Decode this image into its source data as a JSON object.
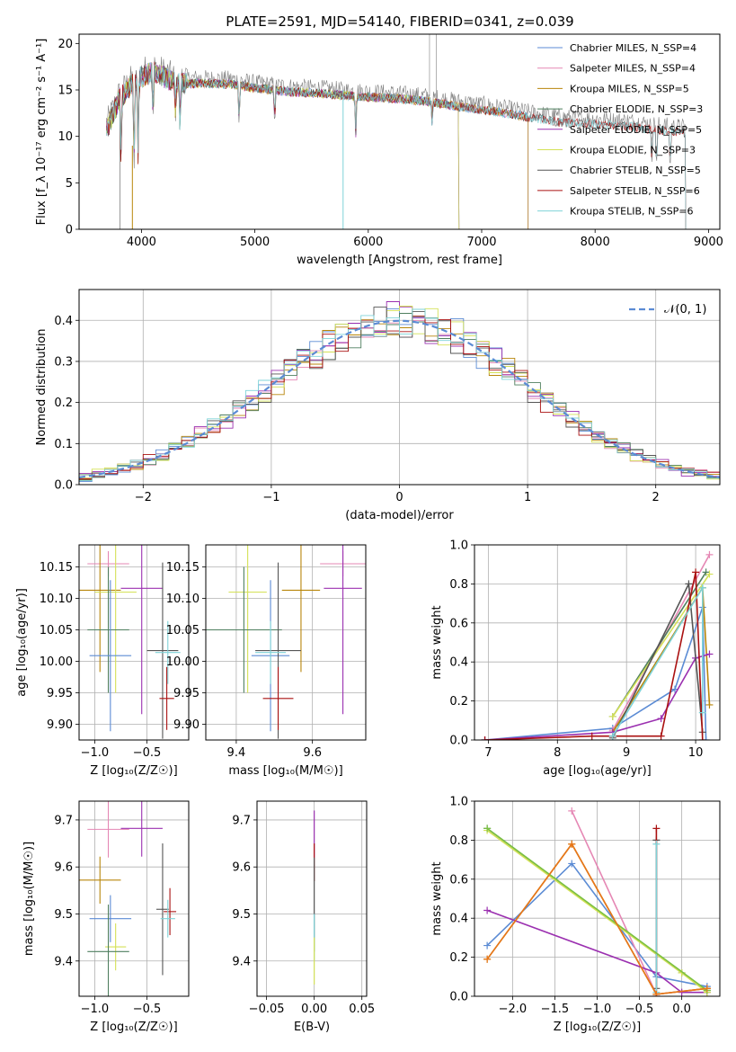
{
  "title": "PLATE=2591, MJD=54140, FIBERID=0341, z=0.039",
  "colors": {
    "Chabrier MILES": "#5b8bd4",
    "Salpeter MILES": "#e587b4",
    "Kroupa MILES": "#b8860b",
    "Chabrier ELODIE": "#4f7f5f",
    "Salpeter ELODIE": "#9b30b0",
    "Kroupa ELODIE": "#d4e157",
    "Chabrier STELIB": "#555555",
    "Salpeter STELIB": "#aa1111",
    "Kroupa STELIB": "#7fd3d8",
    "data": "#808080",
    "orange": "#e8761a",
    "green": "#7bc043"
  },
  "chart_data": [
    {
      "id": "spectrum",
      "type": "line",
      "xlabel": "wavelength [Angstrom, rest frame]",
      "ylabel": "Flux [f_λ 10⁻¹⁷ erg cm⁻² s⁻¹ A⁻¹]",
      "xlim": [
        3450,
        9100
      ],
      "ylim": [
        0,
        21
      ],
      "xticks": [
        4000,
        5000,
        6000,
        7000,
        8000,
        9000
      ],
      "yticks": [
        0,
        5,
        10,
        15,
        20
      ],
      "grid": false,
      "legend": "top-right",
      "legend_entries": [
        "Chabrier MILES, N_SSP=4",
        "Salpeter MILES, N_SSP=4",
        "Kroupa MILES, N_SSP=5",
        "Chabrier ELODIE, N_SSP=3",
        "Salpeter ELODIE, N_SSP=5",
        "Kroupa ELODIE, N_SSP=3",
        "Chabrier STELIB, N_SSP=5",
        "Salpeter STELIB, N_SSP=6",
        "Kroupa STELIB, N_SSP=6"
      ],
      "continuum": [
        [
          3700,
          11.5
        ],
        [
          3750,
          13
        ],
        [
          3800,
          14.5
        ],
        [
          3900,
          16
        ],
        [
          4000,
          17
        ],
        [
          4100,
          17.5
        ],
        [
          4200,
          17
        ],
        [
          4300,
          16.3
        ],
        [
          4500,
          16.3
        ],
        [
          4800,
          16.2
        ],
        [
          5000,
          15.8
        ],
        [
          5300,
          15.4
        ],
        [
          5600,
          15.2
        ],
        [
          5900,
          14.9
        ],
        [
          6200,
          14.7
        ],
        [
          6500,
          14.4
        ],
        [
          6800,
          13.8
        ],
        [
          7100,
          13.3
        ],
        [
          7400,
          12.7
        ],
        [
          7700,
          12.1
        ],
        [
          8000,
          11.9
        ],
        [
          8300,
          11.7
        ],
        [
          8600,
          11.2
        ],
        [
          8800,
          11.0
        ]
      ],
      "model_end": {
        "Chabrier MILES": 7410,
        "Salpeter MILES": 7410,
        "Kroupa MILES": 7410,
        "Chabrier ELODIE": 6800,
        "Salpeter ELODIE": 6800,
        "Kroupa ELODIE": 6800,
        "Chabrier STELIB": 8800,
        "Salpeter STELIB": 8800,
        "Kroupa STELIB": 8800
      }
    },
    {
      "id": "residuals",
      "type": "area",
      "xlabel": "(data-model)/error",
      "ylabel": "Normed distribution",
      "xlim": [
        -2.5,
        2.5
      ],
      "ylim": [
        0,
        0.475
      ],
      "xticks": [
        -2,
        -1,
        0,
        1,
        2
      ],
      "yticks": [
        0.0,
        0.1,
        0.2,
        0.3,
        0.4
      ],
      "grid": true,
      "legend": "top-right",
      "legend_entries": [
        "𝒩(0, 1)"
      ],
      "bin_width": 0.1
    },
    {
      "id": "age-vs-Z",
      "type": "scatter",
      "xlabel": "Z [log₁₀(Z/Z☉)]",
      "ylabel": "age  [log₁₀(age/yr)]",
      "xlim": [
        -1.15,
        -0.1
      ],
      "ylim": [
        9.875,
        10.185
      ],
      "xticks": [
        -1.0,
        -0.5
      ],
      "yticks": [
        9.9,
        9.95,
        10.0,
        10.05,
        10.1,
        10.15
      ],
      "grid": true,
      "points": [
        {
          "model": "Salpeter MILES",
          "x": -0.87,
          "y": 10.155,
          "xerr": 0.2,
          "yerr": 0.02
        },
        {
          "model": "Kroupa MILES",
          "x": -0.95,
          "y": 10.113,
          "xerr": 0.2,
          "yerr": 0.13
        },
        {
          "model": "Kroupa ELODIE",
          "x": -0.8,
          "y": 10.11,
          "xerr": 0.2,
          "yerr": 0.16
        },
        {
          "model": "Salpeter ELODIE",
          "x": -0.55,
          "y": 10.116,
          "xerr": 0.2,
          "yerr": 0.2
        },
        {
          "model": "Chabrier ELODIE",
          "x": -0.87,
          "y": 10.05,
          "xerr": 0.2,
          "yerr": 0.1
        },
        {
          "model": "Chabrier MILES",
          "x": -0.85,
          "y": 10.009,
          "xerr": 0.2,
          "yerr": 0.12
        },
        {
          "model": "Chabrier STELIB",
          "x": -0.35,
          "y": 10.017,
          "xerr": 0.15,
          "yerr": 0.14
        },
        {
          "model": "Kroupa STELIB",
          "x": -0.3,
          "y": 10.014,
          "xerr": 0.12,
          "yerr": 0.05
        },
        {
          "model": "Salpeter STELIB",
          "x": -0.31,
          "y": 9.941,
          "xerr": 0.07,
          "yerr": 0.05
        }
      ]
    },
    {
      "id": "age-vs-mass",
      "type": "scatter",
      "xlabel": "mass [log₁₀(M/M☉)]",
      "ylabel": "",
      "xlim": [
        9.32,
        9.74
      ],
      "ylim": [
        9.875,
        10.185
      ],
      "xticks": [
        9.4,
        9.6
      ],
      "yticks": [
        9.9,
        9.95,
        10.0,
        10.05,
        10.1,
        10.15
      ],
      "grid": true,
      "points": [
        {
          "model": "Salpeter MILES",
          "x": 9.68,
          "y": 10.155,
          "xerr": 0.06,
          "yerr": 0.02
        },
        {
          "model": "Kroupa MILES",
          "x": 9.57,
          "y": 10.113,
          "xerr": 0.05,
          "yerr": 0.13
        },
        {
          "model": "Kroupa ELODIE",
          "x": 9.43,
          "y": 10.11,
          "xerr": 0.05,
          "yerr": 0.16
        },
        {
          "model": "Salpeter ELODIE",
          "x": 9.68,
          "y": 10.116,
          "xerr": 0.05,
          "yerr": 0.2
        },
        {
          "model": "Chabrier ELODIE",
          "x": 9.42,
          "y": 10.05,
          "xerr": 0.1,
          "yerr": 0.1
        },
        {
          "model": "Chabrier MILES",
          "x": 9.49,
          "y": 10.009,
          "xerr": 0.05,
          "yerr": 0.12
        },
        {
          "model": "Chabrier STELIB",
          "x": 9.51,
          "y": 10.017,
          "xerr": 0.06,
          "yerr": 0.14
        },
        {
          "model": "Kroupa STELIB",
          "x": 9.49,
          "y": 10.014,
          "xerr": 0.04,
          "yerr": 0.05
        },
        {
          "model": "Salpeter STELIB",
          "x": 9.51,
          "y": 9.941,
          "xerr": 0.04,
          "yerr": 0.05
        }
      ]
    },
    {
      "id": "weight-vs-age",
      "type": "line",
      "xlabel": "age  [log₁₀(age/yr)]",
      "ylabel": "mass weight",
      "xlim": [
        6.8,
        10.35
      ],
      "ylim": [
        0,
        1.0
      ],
      "xticks": [
        7,
        8,
        9,
        10
      ],
      "yticks": [
        0.0,
        0.2,
        0.4,
        0.6,
        0.8,
        1.0
      ],
      "grid": true,
      "series": [
        {
          "name": "Chabrier MILES",
          "x": [
            6.95,
            8.8,
            9.7,
            10.1,
            10.15
          ],
          "y": [
            0.0,
            0.06,
            0.26,
            0.68,
            0.0
          ]
        },
        {
          "name": "Salpeter MILES",
          "x": [
            8.8,
            10.2
          ],
          "y": [
            0.05,
            0.95
          ]
        },
        {
          "name": "Kroupa MILES",
          "x": [
            8.8,
            10.1,
            10.2
          ],
          "y": [
            0.04,
            0.78,
            0.18
          ]
        },
        {
          "name": "Chabrier ELODIE",
          "x": [
            8.8,
            10.15
          ],
          "y": [
            0.12,
            0.86
          ]
        },
        {
          "name": "Salpeter ELODIE",
          "x": [
            6.95,
            8.8,
            9.5,
            10.0,
            10.2
          ],
          "y": [
            0.0,
            0.04,
            0.11,
            0.42,
            0.44
          ]
        },
        {
          "name": "Kroupa ELODIE",
          "x": [
            8.8,
            10.2
          ],
          "y": [
            0.12,
            0.85
          ]
        },
        {
          "name": "Chabrier STELIB",
          "x": [
            8.8,
            9.9,
            10.1
          ],
          "y": [
            0.01,
            0.8,
            0.04
          ]
        },
        {
          "name": "Salpeter STELIB",
          "x": [
            6.95,
            8.5,
            9.5,
            10.0,
            10.1
          ],
          "y": [
            0.0,
            0.02,
            0.02,
            0.86,
            0.0
          ]
        },
        {
          "name": "Kroupa STELIB",
          "x": [
            8.8,
            10.1,
            10.1
          ],
          "y": [
            0.02,
            0.78,
            0.14
          ]
        }
      ]
    },
    {
      "id": "mass-vs-Z",
      "type": "scatter",
      "xlabel": "Z [log₁₀(Z/Z☉)]",
      "ylabel": "mass [log₁₀(M/M☉)]",
      "xlim": [
        -1.15,
        -0.1
      ],
      "ylim": [
        9.325,
        9.74
      ],
      "xticks": [
        -1.0,
        -0.5
      ],
      "yticks": [
        9.4,
        9.5,
        9.6,
        9.7
      ],
      "grid": true,
      "points": [
        {
          "model": "Salpeter MILES",
          "x": -0.87,
          "y": 9.68,
          "xerr": 0.2,
          "yerr": 0.06
        },
        {
          "model": "Salpeter ELODIE",
          "x": -0.55,
          "y": 9.682,
          "xerr": 0.2,
          "yerr": 0.06
        },
        {
          "model": "Kroupa MILES",
          "x": -0.95,
          "y": 9.572,
          "xerr": 0.2,
          "yerr": 0.05
        },
        {
          "model": "Chabrier MILES",
          "x": -0.85,
          "y": 9.49,
          "xerr": 0.2,
          "yerr": 0.05
        },
        {
          "model": "Kroupa ELODIE",
          "x": -0.8,
          "y": 9.43,
          "xerr": 0.1,
          "yerr": 0.05
        },
        {
          "model": "Chabrier ELODIE",
          "x": -0.87,
          "y": 9.42,
          "xerr": 0.2,
          "yerr": 0.1
        },
        {
          "model": "Chabrier STELIB",
          "x": -0.35,
          "y": 9.51,
          "xerr": 0.06,
          "yerr": 0.14
        },
        {
          "model": "Salpeter STELIB",
          "x": -0.28,
          "y": 9.505,
          "xerr": 0.06,
          "yerr": 0.05
        },
        {
          "model": "Kroupa STELIB",
          "x": -0.3,
          "y": 9.49,
          "xerr": 0.07,
          "yerr": 0.04
        }
      ]
    },
    {
      "id": "mass-vs-EBV",
      "type": "scatter",
      "xlabel": "E(B-V)",
      "ylabel": "",
      "xlim": [
        -0.06,
        0.055
      ],
      "ylim": [
        9.325,
        9.74
      ],
      "xticks": [
        -0.05,
        0.0,
        0.05
      ],
      "yticks": [
        9.4,
        9.5,
        9.6,
        9.7
      ],
      "grid": true,
      "segments": [
        {
          "model": "Salpeter ELODIE",
          "x": 0.0,
          "y0": 9.62,
          "y1": 9.72
        },
        {
          "model": "Salpeter STELIB",
          "x": 0.0,
          "y0": 9.57,
          "y1": 9.65
        },
        {
          "model": "Chabrier STELIB",
          "x": 0.0,
          "y0": 9.42,
          "y1": 9.62
        },
        {
          "model": "Kroupa STELIB",
          "x": 0.0,
          "y0": 9.4,
          "y1": 9.5
        },
        {
          "model": "Kroupa ELODIE",
          "x": 0.0,
          "y0": 9.35,
          "y1": 9.45
        }
      ]
    },
    {
      "id": "weight-vs-Z",
      "type": "line",
      "xlabel": "Z [log₁₀(Z/Z☉)]",
      "ylabel": "mass weight",
      "xlim": [
        -2.45,
        0.45
      ],
      "ylim": [
        0,
        1.0
      ],
      "xticks": [
        -2.0,
        -1.5,
        -1.0,
        -0.5,
        0.0
      ],
      "yticks": [
        0.0,
        0.2,
        0.4,
        0.6,
        0.8,
        1.0
      ],
      "grid": true,
      "series": [
        {
          "name": "Chabrier MILES",
          "x": [
            -2.3,
            -1.3,
            -0.3,
            0.3
          ],
          "y": [
            0.26,
            0.68,
            0.1,
            0.05
          ]
        },
        {
          "name": "Salpeter MILES",
          "x": [
            -1.3,
            -0.3,
            0.3
          ],
          "y": [
            0.95,
            0.01,
            0.04
          ]
        },
        {
          "name": "Kroupa MILES",
          "x": [
            -2.3,
            -1.3,
            -0.3,
            0.3
          ],
          "y": [
            0.19,
            0.78,
            0.01,
            0.04
          ]
        },
        {
          "name": "Chabrier ELODIE",
          "x": [
            -2.3,
            0.0,
            0.3
          ],
          "y": [
            0.86,
            0.12,
            0.03
          ]
        },
        {
          "name": "Salpeter ELODIE",
          "x": [
            -2.3,
            -0.3,
            0.0,
            0.3
          ],
          "y": [
            0.44,
            0.12,
            0.02,
            0.02
          ]
        },
        {
          "name": "Kroupa ELODIE",
          "x": [
            -2.3,
            0.0,
            0.3
          ],
          "y": [
            0.85,
            0.12,
            0.02
          ]
        },
        {
          "name": "Chabrier STELIB",
          "x": [
            -0.3,
            -0.3
          ],
          "y": [
            0.04,
            0.8
          ]
        },
        {
          "name": "Salpeter STELIB",
          "x": [
            -0.3,
            -0.3
          ],
          "y": [
            0.0,
            0.86
          ]
        },
        {
          "name": "Kroupa STELIB",
          "x": [
            -0.3,
            -0.3
          ],
          "y": [
            0.02,
            0.78
          ]
        },
        {
          "name": "green",
          "x": [
            -2.3,
            0.3
          ],
          "y": [
            0.86,
            0.03
          ]
        },
        {
          "name": "orange",
          "x": [
            -2.3,
            -1.3,
            -0.3,
            0.3
          ],
          "y": [
            0.19,
            0.78,
            0.01,
            0.04
          ]
        }
      ]
    }
  ]
}
